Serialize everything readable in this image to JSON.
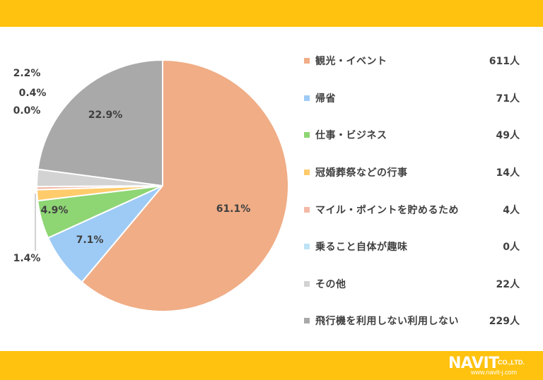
{
  "chart_data": {
    "type": "pie",
    "start": "top, clockwise",
    "slices": [
      {
        "label": "観光・イベント",
        "count": "611人",
        "value": 61.1,
        "pct_label": "61.1%",
        "color": "#F0AD86"
      },
      {
        "label": "帰省",
        "count": "71人",
        "value": 7.1,
        "pct_label": "7.1%",
        "color": "#9ECBF5"
      },
      {
        "label": "仕事・ビジネス",
        "count": "49人",
        "value": 4.9,
        "pct_label": "4.9%",
        "color": "#8ED574"
      },
      {
        "label": "冠婚葬祭などの行事",
        "count": "14人",
        "value": 1.4,
        "pct_label": "1.4%",
        "color": "#FFCB6B"
      },
      {
        "label": "マイル・ポイントを貯めるため",
        "count": "4人",
        "value": 0.4,
        "pct_label": "0.4%",
        "color": "#F4B9A7"
      },
      {
        "label": "乗ること自体が趣味",
        "count": "0人",
        "value": 0.0,
        "pct_label": "0.0%",
        "color": "#BDE3F5"
      },
      {
        "label": "その他",
        "count": "22人",
        "value": 2.2,
        "pct_label": "2.2%",
        "color": "#D3D3D3"
      },
      {
        "label": "飛行機を利用しない利用しない",
        "count": "229人",
        "value": 22.9,
        "pct_label": "22.9%",
        "color": "#A9A9A9"
      }
    ]
  },
  "logo": {
    "name": "NAVIT",
    "suffix": "CO.,LTD.",
    "url": "www.navit-j.com"
  },
  "colors": {
    "band": "#FFC20E",
    "label_text": "#404040"
  }
}
